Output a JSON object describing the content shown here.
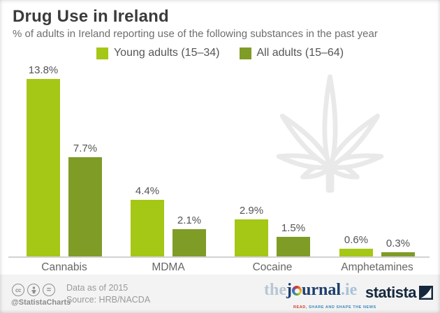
{
  "header": {
    "title": "Drug Use in Ireland",
    "subtitle": "% of adults in Ireland reporting use of the following substances in the past year"
  },
  "legend": [
    {
      "label": "Young adults (15–34)",
      "color": "#a5c716"
    },
    {
      "label": "All adults (15–64)",
      "color": "#7f9c26"
    }
  ],
  "chart_data": {
    "type": "bar",
    "categories": [
      "Cannabis",
      "MDMA",
      "Cocaine",
      "Amphetamines"
    ],
    "series": [
      {
        "name": "Young adults (15–34)",
        "color": "#a5c716",
        "values": [
          13.8,
          4.4,
          2.9,
          0.6
        ]
      },
      {
        "name": "All adults (15–64)",
        "color": "#7f9c26",
        "values": [
          7.7,
          2.1,
          1.5,
          0.3
        ]
      }
    ],
    "value_suffix": "%",
    "ylim": [
      0,
      14.5
    ],
    "grid": false,
    "legend_position": "top",
    "watermark": "cannabis-leaf"
  },
  "footer": {
    "license_icons": [
      "cc-icon",
      "attribution-person-icon",
      "equals-icon"
    ],
    "handle": "@StatistaCharts",
    "data_note": "Data as of 2015",
    "source": "Source: HRB/NACDA",
    "journal_logo": {
      "the": "the",
      "j": "j",
      "urnal": "urnal",
      "tld": ".ie",
      "tagline_lead": "READ,",
      "tagline_rest": " SHARE AND SHAPE THE NEWS"
    },
    "statista_label": "statista"
  },
  "colors": {
    "young_adults": "#a5c716",
    "all_adults": "#7f9c26",
    "axis": "#d2d2d2",
    "footer_bg": "#f3f3f3",
    "statista_navy": "#16283e",
    "journal_navy": "#1d3e6d"
  }
}
